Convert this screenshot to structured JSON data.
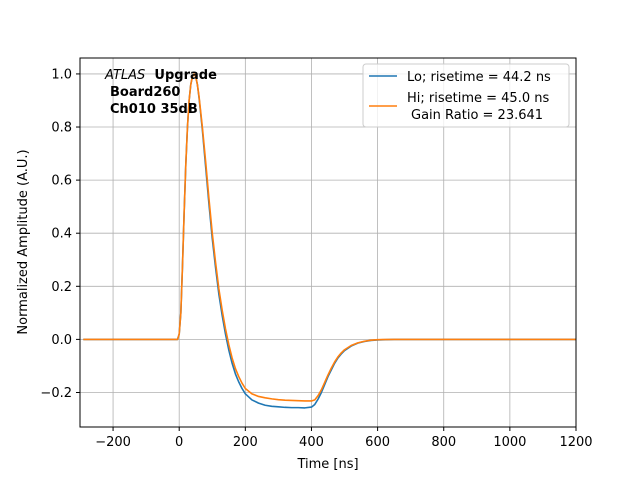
{
  "chart_data": {
    "type": "line",
    "title": "",
    "xlabel": "Time [ns]",
    "ylabel": "Normalized Amplitude (A.U.)",
    "xlim": [
      -300,
      1200
    ],
    "ylim": [
      -0.33,
      1.06
    ],
    "xticks": [
      -200,
      0,
      200,
      400,
      600,
      800,
      1000,
      1200
    ],
    "yticks": [
      -0.2,
      0.0,
      0.2,
      0.4,
      0.6,
      0.8,
      1.0
    ],
    "xtick_labels": [
      "−200",
      "0",
      "200",
      "400",
      "600",
      "800",
      "1000",
      "1200"
    ],
    "ytick_labels": [
      "−0.2",
      "0.0",
      "0.2",
      "0.4",
      "0.6",
      "0.8",
      "1.0"
    ],
    "grid": true,
    "legend_position": "top-right",
    "annotation": {
      "italic": "ATLAS",
      "bold": "Upgrade",
      "line2": "Board260",
      "line3": "Ch010 35dB"
    },
    "series": [
      {
        "name": "Lo; risetime = 44.2 ns",
        "color": "#1f77b4",
        "x": [
          -290,
          -100,
          -5,
          0,
          5,
          10,
          15,
          20,
          25,
          30,
          35,
          40,
          45,
          50,
          55,
          60,
          70,
          80,
          90,
          100,
          110,
          120,
          130,
          140,
          150,
          160,
          170,
          180,
          190,
          200,
          220,
          240,
          260,
          280,
          300,
          320,
          340,
          360,
          380,
          400,
          410,
          420,
          430,
          440,
          450,
          460,
          470,
          480,
          490,
          500,
          520,
          540,
          560,
          580,
          600,
          650,
          700,
          800,
          900,
          1000,
          1100,
          1200
        ],
        "y": [
          0.0,
          0.0,
          0.0,
          0.02,
          0.1,
          0.28,
          0.48,
          0.66,
          0.8,
          0.9,
          0.96,
          0.99,
          1.0,
          0.99,
          0.96,
          0.91,
          0.79,
          0.65,
          0.51,
          0.38,
          0.27,
          0.17,
          0.09,
          0.02,
          -0.04,
          -0.09,
          -0.13,
          -0.16,
          -0.185,
          -0.205,
          -0.228,
          -0.24,
          -0.248,
          -0.252,
          -0.254,
          -0.256,
          -0.257,
          -0.257,
          -0.258,
          -0.255,
          -0.245,
          -0.225,
          -0.2,
          -0.17,
          -0.14,
          -0.115,
          -0.09,
          -0.07,
          -0.055,
          -0.042,
          -0.025,
          -0.014,
          -0.008,
          -0.004,
          -0.002,
          0.0,
          0.0,
          0.0,
          0.0,
          0.0,
          0.0,
          0.0
        ]
      },
      {
        "name": "Hi; risetime = 45.0 ns",
        "name_line2": "Gain Ratio = 23.641",
        "color": "#ff7f0e",
        "x": [
          -290,
          -100,
          -5,
          0,
          5,
          10,
          15,
          20,
          25,
          30,
          35,
          40,
          45,
          50,
          55,
          60,
          70,
          80,
          90,
          100,
          110,
          120,
          130,
          140,
          150,
          160,
          170,
          180,
          190,
          200,
          220,
          240,
          260,
          280,
          300,
          320,
          340,
          360,
          380,
          400,
          410,
          420,
          430,
          440,
          450,
          460,
          470,
          480,
          490,
          500,
          520,
          540,
          560,
          580,
          600,
          650,
          700,
          800,
          900,
          1000,
          1100,
          1200
        ],
        "y": [
          0.0,
          0.0,
          0.0,
          0.02,
          0.1,
          0.28,
          0.48,
          0.66,
          0.8,
          0.9,
          0.96,
          0.99,
          1.0,
          0.99,
          0.96,
          0.915,
          0.8,
          0.67,
          0.53,
          0.4,
          0.29,
          0.19,
          0.11,
          0.04,
          -0.02,
          -0.07,
          -0.11,
          -0.14,
          -0.165,
          -0.185,
          -0.205,
          -0.215,
          -0.22,
          -0.224,
          -0.227,
          -0.229,
          -0.23,
          -0.231,
          -0.232,
          -0.232,
          -0.228,
          -0.212,
          -0.19,
          -0.162,
          -0.134,
          -0.108,
          -0.085,
          -0.066,
          -0.051,
          -0.039,
          -0.023,
          -0.013,
          -0.007,
          -0.003,
          -0.001,
          0.0,
          0.0,
          0.0,
          0.0,
          0.0,
          0.0,
          0.0
        ]
      }
    ]
  }
}
